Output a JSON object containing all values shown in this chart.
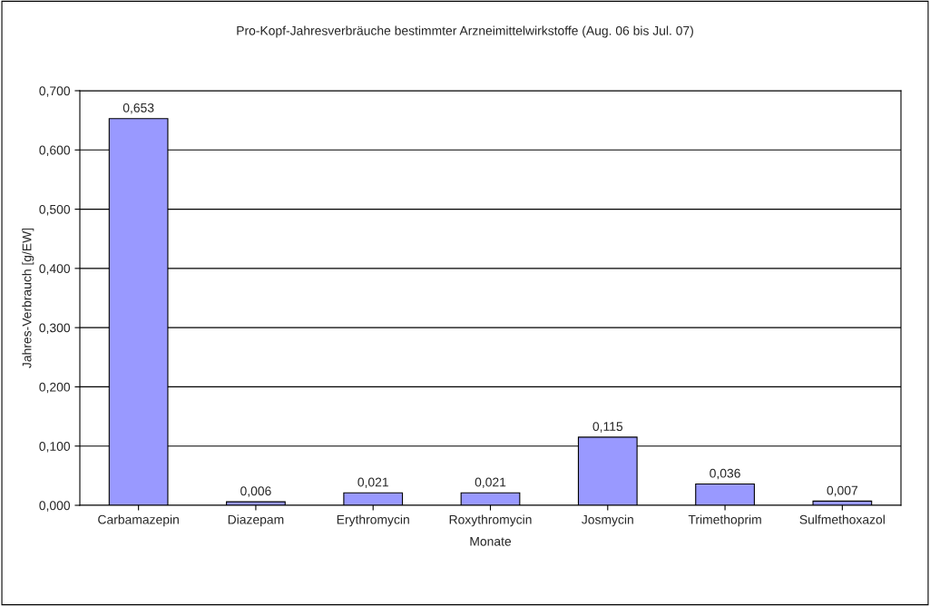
{
  "chart_data": {
    "type": "bar",
    "title": "Pro-Kopf-Jahresverbräuche bestimmter Arzneimittelwirkstoffe (Aug. 06 bis Jul. 07)",
    "xlabel": "Monate",
    "ylabel": "Jahres-Verbrauch [g/EW]",
    "categories": [
      "Carbamazepin",
      "Diazepam",
      "Erythromycin",
      "Roxythromycin",
      "Josmycin",
      "Trimethoprim",
      "Sulfmethoxazol"
    ],
    "values": [
      0.653,
      0.006,
      0.021,
      0.021,
      0.115,
      0.036,
      0.007
    ],
    "value_labels": [
      "0,653",
      "0,006",
      "0,021",
      "0,021",
      "0,115",
      "0,036",
      "0,007"
    ],
    "color": "#9999ff",
    "ylim": [
      0,
      0.7
    ],
    "yticks": [
      {
        "value": 0,
        "label": "0,000"
      },
      {
        "value": 0.1,
        "label": "0,100"
      },
      {
        "value": 0.2,
        "label": "0,200"
      },
      {
        "value": 0.3,
        "label": "0,300"
      },
      {
        "value": 0.4,
        "label": "0,400"
      },
      {
        "value": 0.5,
        "label": "0,500"
      },
      {
        "value": 0.6,
        "label": "0,600"
      },
      {
        "value": 0.7,
        "label": "0,700"
      }
    ],
    "grid": "y",
    "legend": false
  }
}
